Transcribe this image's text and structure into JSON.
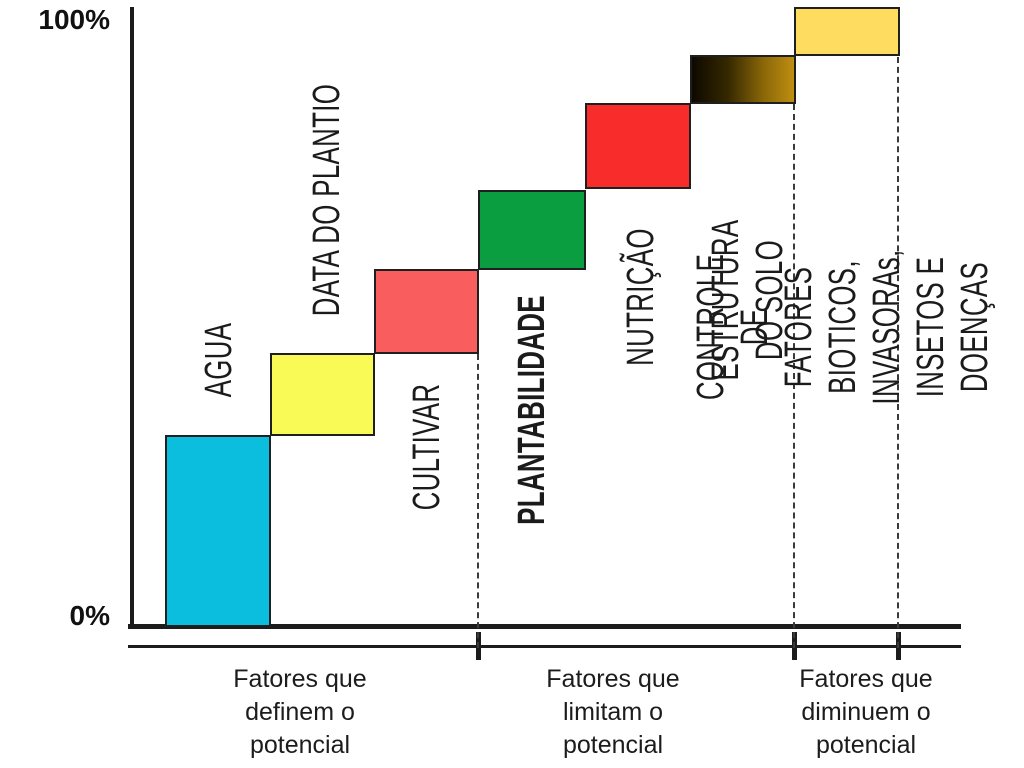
{
  "y_axis": {
    "top_label": "100%",
    "bottom_label": "0%"
  },
  "blocks": [
    {
      "label": "AGUA",
      "background": "#0cbedd"
    },
    {
      "label": "DATA DO PLANTIO",
      "background": "#fafa57"
    },
    {
      "label": "CULTIVAR",
      "background": "#fa5d5d"
    },
    {
      "label": "PLANTABILIDADE",
      "background": "#0a9e41"
    },
    {
      "label": "NUTRIÇÃO",
      "background": "#f92c2c"
    },
    {
      "label": "ESTRUTURA DO SOLO",
      "background": "linear-gradient(90deg, #0d0900 0%, #352800 35%, #8a6708 70%, #bf8e10 100%)"
    },
    {
      "label": "CONTROLE DE FATORES BIOTICOS,\nINVASORAs, INSETOS E DOENÇAS",
      "background": "#fedc5f"
    }
  ],
  "group_axis": {
    "labels": [
      "Fatores que\ndefinem o\npotencial",
      "Fatores que\nlimitam o\npotencial",
      "Fatores que\ndiminuem o\npotencial"
    ]
  },
  "chart_data": {
    "type": "bar",
    "subtype": "waterfall-staircase",
    "title": "",
    "xlabel": "",
    "ylabel": "",
    "ylim": [
      0,
      100
    ],
    "y_tick_labels": [
      "0%",
      "100%"
    ],
    "grid": false,
    "legend": "none",
    "categories": [
      "AGUA",
      "DATA DO PLANTIO",
      "CULTIVAR",
      "PLANTABILIDADE",
      "NUTRIÇÃO",
      "ESTRUTURA DO SOLO",
      "CONTROLE DE FATORES BIOTICOS, INVASORAs, INSETOS E DOENÇAS"
    ],
    "segments": [
      {
        "label": "AGUA",
        "start_pct": 0,
        "end_pct": 31,
        "color": "#0cbedd",
        "bold_label": false,
        "group": "Fatores que definem o potencial"
      },
      {
        "label": "DATA DO PLANTIO",
        "start_pct": 31,
        "end_pct": 44,
        "color": "#fafa57",
        "bold_label": false,
        "group": "Fatores que definem o potencial"
      },
      {
        "label": "CULTIVAR",
        "start_pct": 44,
        "end_pct": 58,
        "color": "#fa5d5d",
        "bold_label": false,
        "group": "Fatores que definem o potencial"
      },
      {
        "label": "PLANTABILIDADE",
        "start_pct": 58,
        "end_pct": 70.5,
        "color": "#0a9e41",
        "bold_label": true,
        "group": "Fatores que limitam o potencial"
      },
      {
        "label": "NUTRIÇÃO",
        "start_pct": 70.5,
        "end_pct": 84.5,
        "color": "#f92c2c",
        "bold_label": false,
        "group": "Fatores que limitam o potencial"
      },
      {
        "label": "ESTRUTURA DO SOLO",
        "start_pct": 84.5,
        "end_pct": 92.5,
        "color": "gradient #0d0900 to #bf8e10",
        "bold_label": false,
        "group": "Fatores que limitam o potencial"
      },
      {
        "label": "CONTROLE DE FATORES BIOTICOS, INVASORAs, INSETOS E DOENÇAS",
        "start_pct": 92.5,
        "end_pct": 100,
        "color": "#fedc5f",
        "bold_label": false,
        "group": "Fatores que diminuem o potencial"
      }
    ],
    "group_labels": [
      "Fatores que definem o potencial",
      "Fatores que limitam o potencial",
      "Fatores que diminuem o potencial"
    ],
    "separators_pct_after": [
      "CULTIVAR",
      "ESTRUTURA DO SOLO",
      "CONTROLE DE FATORES BIOTICOS, INVASORAs, INSETOS E DOENÇAS"
    ]
  }
}
